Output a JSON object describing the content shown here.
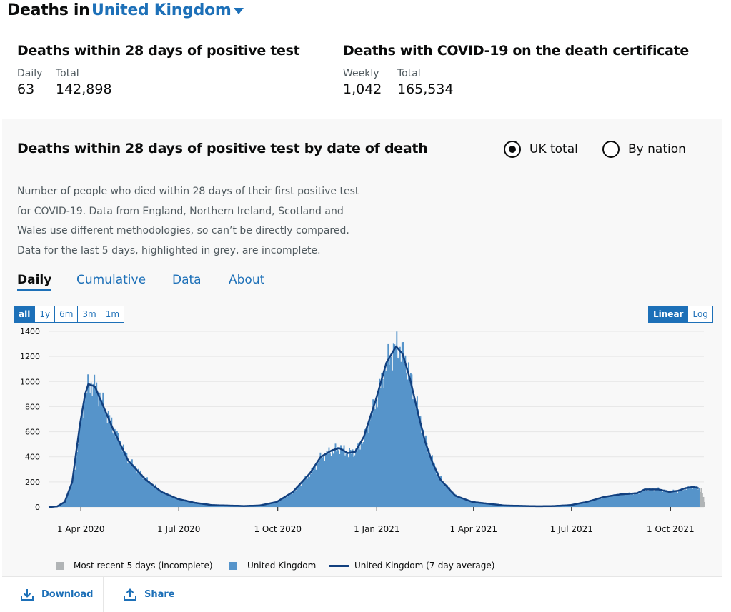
{
  "header": {
    "prefix": "Deaths in",
    "location": "United Kingdom"
  },
  "headlines": [
    {
      "title": "Deaths within 28 days of positive test",
      "items": [
        {
          "label": "Daily",
          "value": "63"
        },
        {
          "label": "Total",
          "value": "142,898"
        }
      ]
    },
    {
      "title": "Deaths with COVID-19 on the death certificate",
      "items": [
        {
          "label": "Weekly",
          "value": "1,042"
        },
        {
          "label": "Total",
          "value": "165,534"
        }
      ]
    }
  ],
  "card": {
    "title": "Deaths within 28 days of positive test by date of death",
    "radios": [
      {
        "label": "UK total",
        "checked": true
      },
      {
        "label": "By nation",
        "checked": false
      }
    ],
    "description": [
      "Number of people who died within 28 days of their first positive test",
      "for COVID-19. Data from England, Northern Ireland, Scotland and",
      "Wales use different methodologies, so can’t be directly compared.",
      "Data for the last 5 days, highlighted in grey, are incomplete."
    ],
    "tabs": [
      "Daily",
      "Cumulative",
      "Data",
      "About"
    ],
    "active_tab": "Daily",
    "range_buttons": [
      "all",
      "1y",
      "6m",
      "3m",
      "1m"
    ],
    "selected_range": "all",
    "scale_buttons": [
      "Linear",
      "Log"
    ],
    "selected_scale": "Linear"
  },
  "colors": {
    "bar": "#5694ca",
    "incomplete": "#b1b4b6",
    "average": "#12407f",
    "link": "#1d70b8"
  },
  "chart_data": {
    "type": "bar",
    "x_start": "2020-03-02",
    "x_end": "2021-11-01",
    "ylim": [
      0,
      1400
    ],
    "y_ticks": [
      0,
      200,
      400,
      600,
      800,
      1000,
      1200,
      1400
    ],
    "x_ticks": [
      "1 Apr 2020",
      "1 Jul 2020",
      "1 Oct 2020",
      "1 Jan 2021",
      "1 Apr 2021",
      "1 Jul 2021",
      "1 Oct 2021"
    ],
    "x_tick_dates": [
      "2020-04-01",
      "2020-07-01",
      "2020-10-01",
      "2021-01-01",
      "2021-04-01",
      "2021-07-01",
      "2021-10-01"
    ],
    "series": [
      {
        "name": "United Kingdom (7-day average)",
        "points": [
          [
            "2020-03-02",
            0
          ],
          [
            "2020-03-10",
            5
          ],
          [
            "2020-03-17",
            40
          ],
          [
            "2020-03-24",
            200
          ],
          [
            "2020-03-31",
            650
          ],
          [
            "2020-04-05",
            900
          ],
          [
            "2020-04-08",
            980
          ],
          [
            "2020-04-14",
            960
          ],
          [
            "2020-04-21",
            820
          ],
          [
            "2020-05-01",
            620
          ],
          [
            "2020-05-15",
            370
          ],
          [
            "2020-05-31",
            220
          ],
          [
            "2020-06-15",
            120
          ],
          [
            "2020-06-30",
            65
          ],
          [
            "2020-07-15",
            35
          ],
          [
            "2020-08-01",
            15
          ],
          [
            "2020-08-31",
            8
          ],
          [
            "2020-09-14",
            12
          ],
          [
            "2020-09-30",
            40
          ],
          [
            "2020-10-15",
            120
          ],
          [
            "2020-10-31",
            270
          ],
          [
            "2020-11-10",
            400
          ],
          [
            "2020-11-20",
            450
          ],
          [
            "2020-11-27",
            470
          ],
          [
            "2020-12-05",
            430
          ],
          [
            "2020-12-12",
            440
          ],
          [
            "2020-12-20",
            560
          ],
          [
            "2020-12-31",
            850
          ],
          [
            "2021-01-10",
            1150
          ],
          [
            "2021-01-19",
            1280
          ],
          [
            "2021-01-25",
            1220
          ],
          [
            "2021-02-01",
            1020
          ],
          [
            "2021-02-08",
            760
          ],
          [
            "2021-02-15",
            520
          ],
          [
            "2021-02-22",
            350
          ],
          [
            "2021-03-01",
            220
          ],
          [
            "2021-03-15",
            90
          ],
          [
            "2021-03-31",
            40
          ],
          [
            "2021-04-30",
            12
          ],
          [
            "2021-05-31",
            6
          ],
          [
            "2021-06-15",
            8
          ],
          [
            "2021-06-30",
            15
          ],
          [
            "2021-07-15",
            40
          ],
          [
            "2021-07-31",
            80
          ],
          [
            "2021-08-15",
            100
          ],
          [
            "2021-08-31",
            110
          ],
          [
            "2021-09-07",
            140
          ],
          [
            "2021-09-20",
            140
          ],
          [
            "2021-09-30",
            120
          ],
          [
            "2021-10-08",
            130
          ],
          [
            "2021-10-15",
            150
          ],
          [
            "2021-10-22",
            160
          ],
          [
            "2021-10-27",
            150
          ]
        ]
      },
      {
        "name": "United Kingdom",
        "values_from": "daily bars around the 7-day average"
      },
      {
        "name": "Most recent 5 days (incomplete)",
        "dates": [
          "2021-10-28",
          "2021-10-29",
          "2021-10-30",
          "2021-10-31",
          "2021-11-01"
        ],
        "values": [
          120,
          150,
          110,
          80,
          40
        ]
      }
    ]
  },
  "legend": [
    "Most recent 5 days (incomplete)",
    "United Kingdom",
    "United Kingdom (7-day average)"
  ],
  "footer": {
    "download": "Download",
    "share": "Share"
  }
}
